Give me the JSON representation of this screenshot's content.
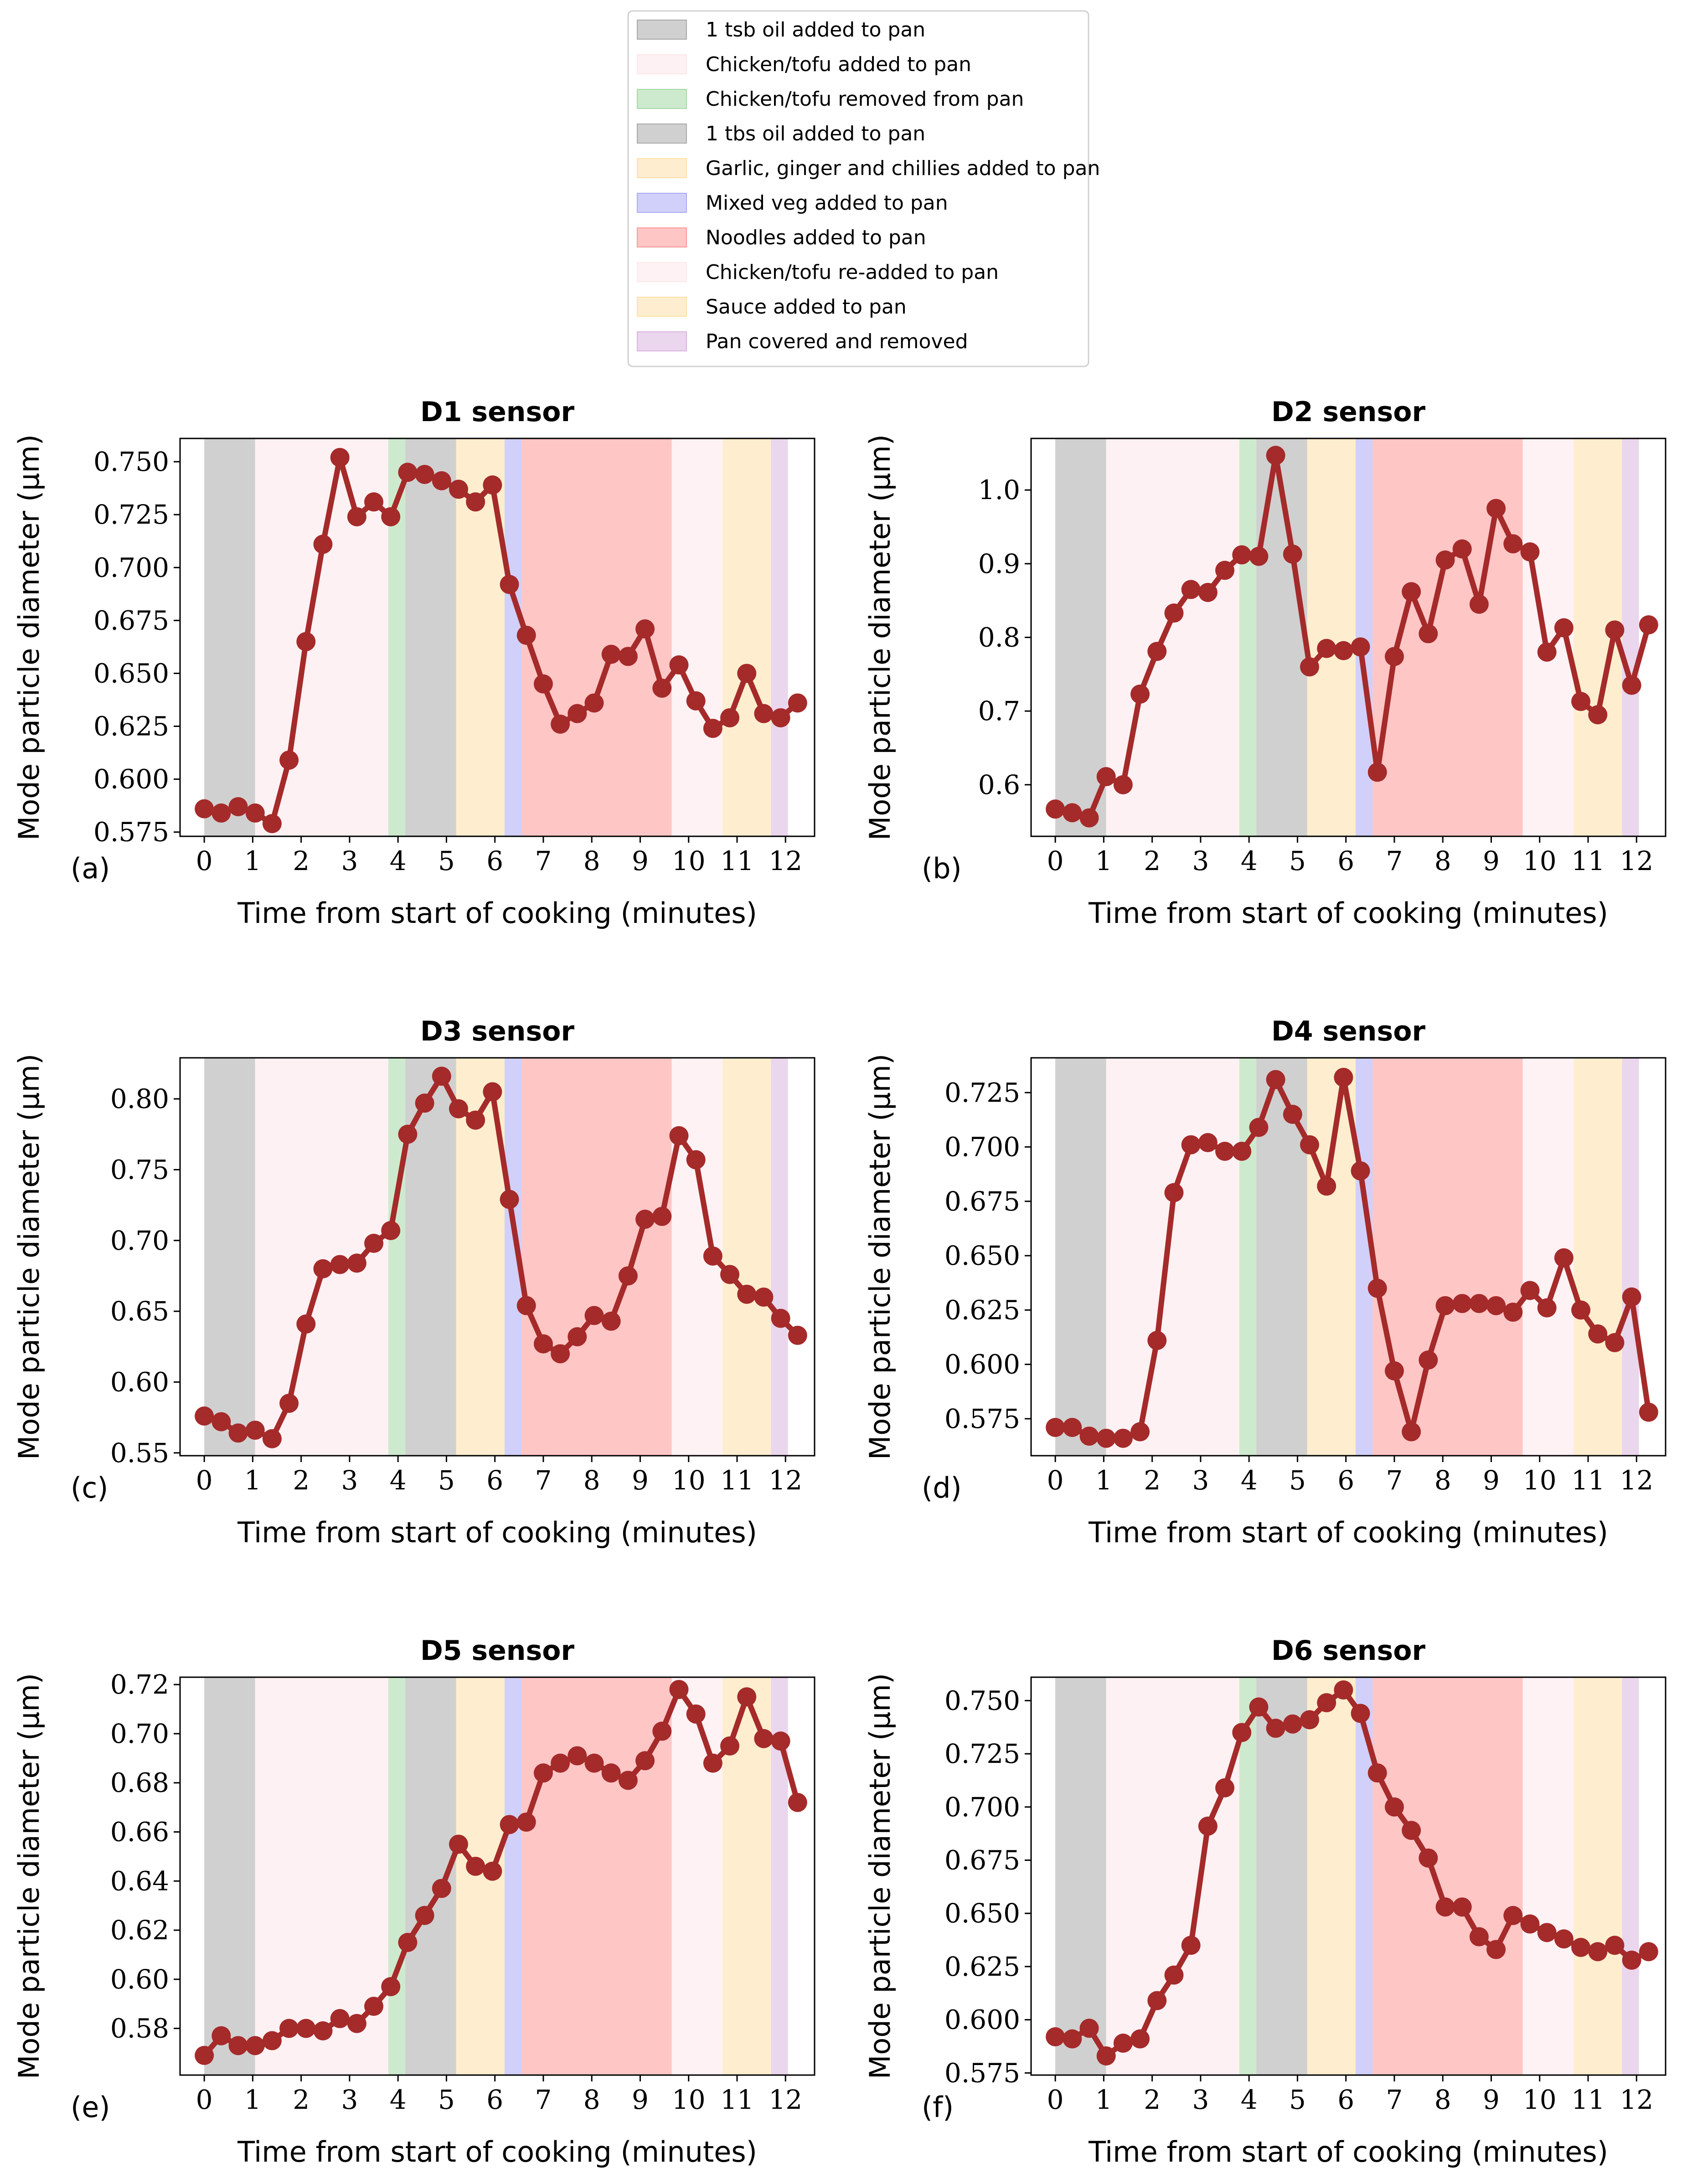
{
  "figure": {
    "xlabel": "Time from start of cooking (minutes)",
    "ylabel": "Mode particle diameter (μm)",
    "legend": [
      {
        "label": "1 tsb oil added to pan",
        "color": "#a9a9a9",
        "start": 0,
        "end": 1.05
      },
      {
        "label": "Chicken/tofu added to pan",
        "color": "#fde5ea",
        "start": 1.05,
        "end": 3.8
      },
      {
        "label": "Chicken/tofu removed from pan",
        "color": "#a6d8a6",
        "start": 3.8,
        "end": 4.15
      },
      {
        "label": "1 tbs oil added to pan",
        "color": "#a9a9a9",
        "start": 4.15,
        "end": 5.2
      },
      {
        "label": "Garlic, ginger and chillies added to pan",
        "color": "#fde0a8",
        "start": 5.2,
        "end": 6.2
      },
      {
        "label": "Mixed veg added to pan",
        "color": "#aaaaf5",
        "start": 6.2,
        "end": 6.55
      },
      {
        "label": "Noodles added to pan",
        "color": "#ff9898",
        "start": 6.55,
        "end": 9.65
      },
      {
        "label": "Chicken/tofu re-added to pan",
        "color": "#fde8ed",
        "start": 9.65,
        "end": 10.7
      },
      {
        "label": "Sauce added to pan",
        "color": "#fde0a8",
        "start": 10.7,
        "end": 11.7
      },
      {
        "label": "Pan covered and removed",
        "color": "#d8b4de",
        "start": 11.7,
        "end": 12.05
      }
    ],
    "line_color": "#a52a2a",
    "x_ticks": [
      0,
      1,
      2,
      3,
      4,
      5,
      6,
      7,
      8,
      9,
      10,
      11,
      12
    ]
  },
  "chart_data": [
    {
      "type": "line",
      "title": "D1 sensor",
      "panel": "(a)",
      "xlabel": "Time from start of cooking (minutes)",
      "ylabel": "Mode particle diameter (μm)",
      "xlim": [
        -0.5,
        12.6
      ],
      "ylim": [
        0.573,
        0.761
      ],
      "y_ticks": [
        0.575,
        0.6,
        0.625,
        0.65,
        0.675,
        0.7,
        0.725,
        0.75
      ],
      "y_tick_labels": [
        "0.575",
        "0.600",
        "0.625",
        "0.650",
        "0.675",
        "0.700",
        "0.725",
        "0.750"
      ],
      "x": [
        0,
        0.35,
        0.7,
        1.05,
        1.4,
        1.75,
        2.1,
        2.45,
        2.8,
        3.15,
        3.5,
        3.85,
        4.2,
        4.55,
        4.9,
        5.25,
        5.6,
        5.95,
        6.3,
        6.65,
        7.0,
        7.35,
        7.7,
        8.05,
        8.4,
        8.75,
        9.1,
        9.45,
        9.8,
        10.15,
        10.5,
        10.85,
        11.2,
        11.55,
        11.9,
        12.25
      ],
      "y": [
        0.586,
        0.584,
        0.587,
        0.584,
        0.579,
        0.609,
        0.665,
        0.711,
        0.752,
        0.724,
        0.731,
        0.724,
        0.745,
        0.744,
        0.741,
        0.737,
        0.731,
        0.739,
        0.692,
        0.668,
        0.645,
        0.626,
        0.631,
        0.636,
        0.659,
        0.658,
        0.671,
        0.643,
        0.654,
        0.637,
        0.624,
        0.629,
        0.65,
        0.631,
        0.629,
        0.636
      ]
    },
    {
      "type": "line",
      "title": "D2 sensor",
      "panel": "(b)",
      "xlabel": "Time from start of cooking (minutes)",
      "ylabel": "Mode particle diameter (μm)",
      "xlim": [
        -0.5,
        12.6
      ],
      "ylim": [
        0.53,
        1.07
      ],
      "y_ticks": [
        0.6,
        0.7,
        0.8,
        0.9,
        1.0
      ],
      "y_tick_labels": [
        "0.6",
        "0.7",
        "0.8",
        "0.9",
        "1.0"
      ],
      "x": [
        0,
        0.35,
        0.7,
        1.05,
        1.4,
        1.75,
        2.1,
        2.45,
        2.8,
        3.15,
        3.5,
        3.85,
        4.2,
        4.55,
        4.9,
        5.25,
        5.6,
        5.95,
        6.3,
        6.65,
        7.0,
        7.35,
        7.7,
        8.05,
        8.4,
        8.75,
        9.1,
        9.45,
        9.8,
        10.15,
        10.5,
        10.85,
        11.2,
        11.55,
        11.9,
        12.25
      ],
      "y": [
        0.567,
        0.562,
        0.555,
        0.611,
        0.6,
        0.723,
        0.781,
        0.833,
        0.865,
        0.861,
        0.891,
        0.912,
        0.91,
        1.047,
        0.913,
        0.76,
        0.785,
        0.782,
        0.787,
        0.617,
        0.774,
        0.862,
        0.805,
        0.905,
        0.92,
        0.845,
        0.975,
        0.927,
        0.916,
        0.78,
        0.813,
        0.713,
        0.695,
        0.81,
        0.735,
        0.817
      ]
    },
    {
      "type": "line",
      "title": "D3 sensor",
      "panel": "(c)",
      "xlabel": "Time from start of cooking (minutes)",
      "ylabel": "Mode particle diameter (μm)",
      "xlim": [
        -0.5,
        12.6
      ],
      "ylim": [
        0.548,
        0.829
      ],
      "y_ticks": [
        0.55,
        0.6,
        0.65,
        0.7,
        0.75,
        0.8
      ],
      "y_tick_labels": [
        "0.55",
        "0.60",
        "0.65",
        "0.70",
        "0.75",
        "0.80"
      ],
      "x": [
        0,
        0.35,
        0.7,
        1.05,
        1.4,
        1.75,
        2.1,
        2.45,
        2.8,
        3.15,
        3.5,
        3.85,
        4.2,
        4.55,
        4.9,
        5.25,
        5.6,
        5.95,
        6.3,
        6.65,
        7.0,
        7.35,
        7.7,
        8.05,
        8.4,
        8.75,
        9.1,
        9.45,
        9.8,
        10.15,
        10.5,
        10.85,
        11.2,
        11.55,
        11.9,
        12.25
      ],
      "y": [
        0.576,
        0.572,
        0.564,
        0.566,
        0.56,
        0.585,
        0.641,
        0.68,
        0.683,
        0.684,
        0.698,
        0.707,
        0.775,
        0.797,
        0.816,
        0.793,
        0.785,
        0.805,
        0.729,
        0.654,
        0.627,
        0.62,
        0.632,
        0.647,
        0.643,
        0.675,
        0.715,
        0.717,
        0.774,
        0.757,
        0.689,
        0.676,
        0.662,
        0.66,
        0.645,
        0.633
      ]
    },
    {
      "type": "line",
      "title": "D4 sensor",
      "panel": "(d)",
      "xlabel": "Time from start of cooking (minutes)",
      "ylabel": "Mode particle diameter (μm)",
      "xlim": [
        -0.5,
        12.6
      ],
      "ylim": [
        0.558,
        0.741
      ],
      "y_ticks": [
        0.575,
        0.6,
        0.625,
        0.65,
        0.675,
        0.7,
        0.725
      ],
      "y_tick_labels": [
        "0.575",
        "0.600",
        "0.625",
        "0.650",
        "0.675",
        "0.700",
        "0.725"
      ],
      "x": [
        0,
        0.35,
        0.7,
        1.05,
        1.4,
        1.75,
        2.1,
        2.45,
        2.8,
        3.15,
        3.5,
        3.85,
        4.2,
        4.55,
        4.9,
        5.25,
        5.6,
        5.95,
        6.3,
        6.65,
        7.0,
        7.35,
        7.7,
        8.05,
        8.4,
        8.75,
        9.1,
        9.45,
        9.8,
        10.15,
        10.5,
        10.85,
        11.2,
        11.55,
        11.9,
        12.25
      ],
      "y": [
        0.571,
        0.571,
        0.567,
        0.566,
        0.566,
        0.569,
        0.611,
        0.679,
        0.701,
        0.702,
        0.698,
        0.698,
        0.709,
        0.731,
        0.715,
        0.701,
        0.682,
        0.732,
        0.689,
        0.635,
        0.597,
        0.569,
        0.602,
        0.627,
        0.628,
        0.628,
        0.627,
        0.624,
        0.634,
        0.626,
        0.649,
        0.625,
        0.614,
        0.61,
        0.631,
        0.578
      ]
    },
    {
      "type": "line",
      "title": "D5 sensor",
      "panel": "(e)",
      "xlabel": "Time from start of cooking (minutes)",
      "ylabel": "Mode particle diameter (μm)",
      "xlim": [
        -0.5,
        12.6
      ],
      "ylim": [
        0.561,
        0.723
      ],
      "y_ticks": [
        0.58,
        0.6,
        0.62,
        0.64,
        0.66,
        0.68,
        0.7,
        0.72
      ],
      "y_tick_labels": [
        "0.58",
        "0.60",
        "0.62",
        "0.64",
        "0.66",
        "0.68",
        "0.70",
        "0.72"
      ],
      "x": [
        0,
        0.35,
        0.7,
        1.05,
        1.4,
        1.75,
        2.1,
        2.45,
        2.8,
        3.15,
        3.5,
        3.85,
        4.2,
        4.55,
        4.9,
        5.25,
        5.6,
        5.95,
        6.3,
        6.65,
        7.0,
        7.35,
        7.7,
        8.05,
        8.4,
        8.75,
        9.1,
        9.45,
        9.8,
        10.15,
        10.5,
        10.85,
        11.2,
        11.55,
        11.9,
        12.25
      ],
      "y": [
        0.569,
        0.577,
        0.573,
        0.573,
        0.575,
        0.58,
        0.58,
        0.579,
        0.584,
        0.582,
        0.589,
        0.597,
        0.615,
        0.626,
        0.637,
        0.655,
        0.646,
        0.644,
        0.663,
        0.664,
        0.684,
        0.688,
        0.691,
        0.688,
        0.684,
        0.681,
        0.689,
        0.701,
        0.718,
        0.708,
        0.688,
        0.695,
        0.715,
        0.698,
        0.697,
        0.672
      ]
    },
    {
      "type": "line",
      "title": "D6 sensor",
      "panel": "(f)",
      "xlabel": "Time from start of cooking (minutes)",
      "ylabel": "Mode particle diameter (μm)",
      "xlim": [
        -0.5,
        12.6
      ],
      "ylim": [
        0.574,
        0.761
      ],
      "y_ticks": [
        0.575,
        0.6,
        0.625,
        0.65,
        0.675,
        0.7,
        0.725,
        0.75
      ],
      "y_tick_labels": [
        "0.575",
        "0.600",
        "0.625",
        "0.650",
        "0.675",
        "0.700",
        "0.725",
        "0.750"
      ],
      "x": [
        0,
        0.35,
        0.7,
        1.05,
        1.4,
        1.75,
        2.1,
        2.45,
        2.8,
        3.15,
        3.5,
        3.85,
        4.2,
        4.55,
        4.9,
        5.25,
        5.6,
        5.95,
        6.3,
        6.65,
        7.0,
        7.35,
        7.7,
        8.05,
        8.4,
        8.75,
        9.1,
        9.45,
        9.8,
        10.15,
        10.5,
        10.85,
        11.2,
        11.55,
        11.9,
        12.25
      ],
      "y": [
        0.592,
        0.591,
        0.596,
        0.583,
        0.589,
        0.591,
        0.609,
        0.621,
        0.635,
        0.691,
        0.709,
        0.735,
        0.747,
        0.737,
        0.739,
        0.741,
        0.749,
        0.755,
        0.744,
        0.716,
        0.7,
        0.689,
        0.676,
        0.653,
        0.653,
        0.639,
        0.633,
        0.649,
        0.645,
        0.641,
        0.638,
        0.634,
        0.632,
        0.635,
        0.628,
        0.632
      ]
    }
  ]
}
